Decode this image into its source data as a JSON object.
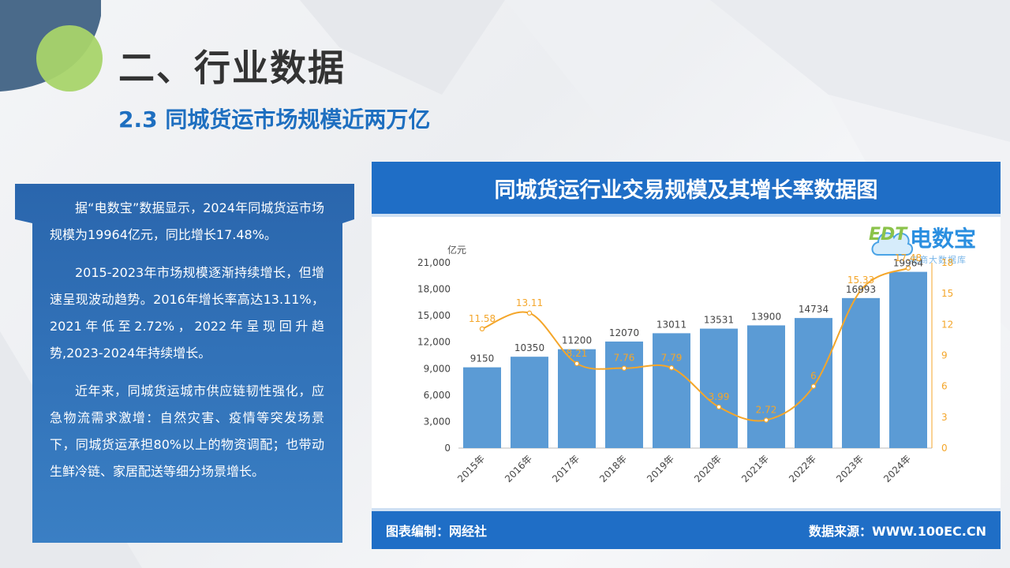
{
  "header": {
    "title": "二、行业数据",
    "subtitle": "2.3 同城货运市场规模近两万亿"
  },
  "text_panel": {
    "paragraphs": [
      "据“电数宝”数据显示，2024年同城货运市场规模为19964亿元，同比增长17.48%。",
      "2015-2023年市场规模逐渐持续增长，但增速呈现波动趋势。2016年增长率高达13.11%，2021年低至2.72%，2022年呈现回升趋势,2023-2024年持续增长。",
      "近年来，同城货运城市供应链韧性强化，应急物流需求激增：自然灾害、疫情等突发场景下，同城货运承担80%以上的物资调配；也带动生鲜冷链、家居配送等细分场景增长。"
    ]
  },
  "chart_card": {
    "title": "同城货运行业交易规模及其增长率数据图",
    "footer_left": "图表编制：网经社",
    "footer_right": "数据来源：WWW.100EC.CN",
    "logo_main": "电数宝",
    "logo_sub": "电商大数据库",
    "logo_mark": "EDT"
  },
  "chart_data": {
    "type": "bar",
    "categories": [
      "2015年",
      "2016年",
      "2017年",
      "2018年",
      "2019年",
      "2020年",
      "2021年",
      "2022年",
      "2023年",
      "2024年"
    ],
    "ylabel": "亿元",
    "ylim": [
      0,
      21000
    ],
    "yticks": [
      "0",
      "3,000",
      "6,000",
      "9,000",
      "12,000",
      "15,000",
      "18,000",
      "21,000"
    ],
    "y2lim": [
      0,
      18
    ],
    "y2ticks": [
      "0",
      "3",
      "6",
      "9",
      "12",
      "15",
      "18"
    ],
    "series": [
      {
        "type": "bar",
        "values": [
          9150,
          10350,
          11200,
          12070,
          13011,
          13531,
          13900,
          14734,
          16993,
          19964
        ],
        "labels": [
          "9150",
          "10350",
          "11200",
          "12070",
          "13011",
          "13531",
          "13900",
          "14734",
          "16993",
          "19964"
        ],
        "color": "#5b9bd5"
      },
      {
        "type": "line",
        "axis": "right",
        "values": [
          11.58,
          13.11,
          8.21,
          7.76,
          7.79,
          3.99,
          2.72,
          6,
          15.33,
          17.48
        ],
        "labels": [
          "11.58",
          "13.11",
          "8.21",
          "7.76",
          "7.79",
          "3.99",
          "2.72",
          "6",
          "15.33",
          "17.48"
        ],
        "color": "#f4a62a"
      }
    ],
    "grid": false
  }
}
